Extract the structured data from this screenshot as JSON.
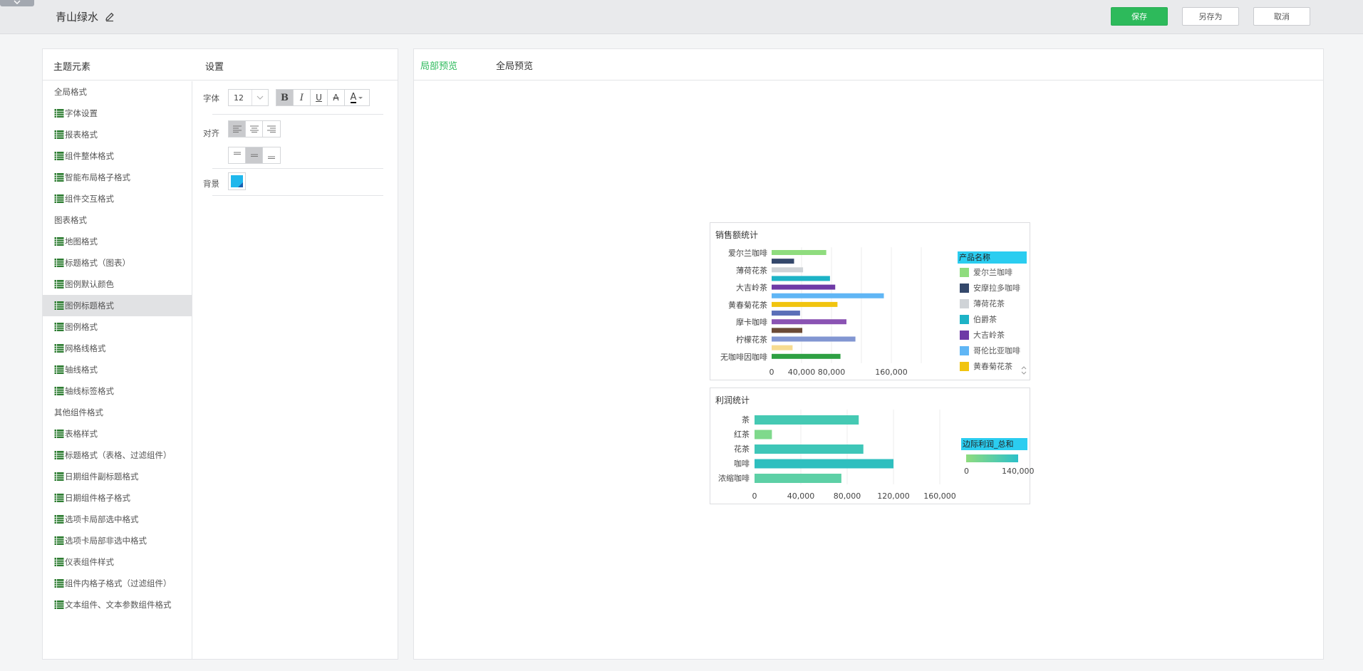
{
  "header": {
    "doc_title": "青山绿水",
    "save_label": "保存",
    "save_as_label": "另存为",
    "cancel_label": "取消"
  },
  "left": {
    "elements_header": "主题元素",
    "settings_header": "设置",
    "items": [
      {
        "label": "全局格式",
        "group": true
      },
      {
        "label": "字体设置",
        "group": false
      },
      {
        "label": "报表格式",
        "group": false
      },
      {
        "label": "组件整体格式",
        "group": false
      },
      {
        "label": "智能布局格子格式",
        "group": false
      },
      {
        "label": "组件交互格式",
        "group": false
      },
      {
        "label": "图表格式",
        "group": true
      },
      {
        "label": "地图格式",
        "group": false
      },
      {
        "label": "标题格式（图表）",
        "group": false
      },
      {
        "label": "图例默认颜色",
        "group": false
      },
      {
        "label": "图例标题格式",
        "group": false,
        "selected": true
      },
      {
        "label": "图例格式",
        "group": false
      },
      {
        "label": "网格线格式",
        "group": false
      },
      {
        "label": "轴线格式",
        "group": false
      },
      {
        "label": "轴线标签格式",
        "group": false
      },
      {
        "label": "其他组件格式",
        "group": true
      },
      {
        "label": "表格样式",
        "group": false
      },
      {
        "label": "标题格式（表格、过滤组件）",
        "group": false
      },
      {
        "label": "日期组件副标题格式",
        "group": false
      },
      {
        "label": "日期组件格子格式",
        "group": false
      },
      {
        "label": "选项卡局部选中格式",
        "group": false
      },
      {
        "label": "选项卡局部非选中格式",
        "group": false
      },
      {
        "label": "仪表组件样式",
        "group": false
      },
      {
        "label": "组件内格子格式（过滤组件）",
        "group": false
      },
      {
        "label": "文本组件、文本参数组件格式",
        "group": false
      }
    ],
    "settings": {
      "font_label": "字体",
      "font_size": "12",
      "bold": "B",
      "italic": "I",
      "underline": "U",
      "strike": "A",
      "font_color_letter": "A",
      "align_label": "对齐",
      "background_label": "背景",
      "background_color": "#1fb7ec"
    }
  },
  "right": {
    "tab_local": "局部预览",
    "tab_global": "全局预览"
  },
  "colors": {
    "accent": "#2dba5b",
    "legend_title_bg": "#2bcdf0"
  },
  "chart_data": [
    {
      "type": "bar",
      "title": "销售额统计",
      "orientation": "horizontal",
      "categories_labeled": [
        "爱尔兰咖啡",
        "薄荷花茶",
        "大吉岭茶",
        "黄春菊花茶",
        "摩卡咖啡",
        "柠檬花茶",
        "无咖啡因咖啡"
      ],
      "bars": [
        {
          "value": 73000,
          "color": "#8fdc7e"
        },
        {
          "value": 30000,
          "color": "#34486b"
        },
        {
          "value": 42000,
          "color": "#cfd3d7"
        },
        {
          "value": 78000,
          "color": "#1db3c6"
        },
        {
          "value": 85000,
          "color": "#6e3aa6"
        },
        {
          "value": 150000,
          "color": "#60b6f5"
        },
        {
          "value": 88000,
          "color": "#f1c40f"
        },
        {
          "value": 38000,
          "color": "#5b6fb8"
        },
        {
          "value": 100000,
          "color": "#8a53b3"
        },
        {
          "value": 41000,
          "color": "#6b4a36"
        },
        {
          "value": 112000,
          "color": "#8296d2"
        },
        {
          "value": 28000,
          "color": "#f7dc91"
        },
        {
          "value": 92000,
          "color": "#2ea043"
        }
      ],
      "x_ticks": [
        "0",
        "40,000",
        "80,000",
        "160,000"
      ],
      "xlim": [
        0,
        200000
      ],
      "legend_title": "产品名称",
      "legend": [
        {
          "name": "爱尔兰咖啡",
          "color": "#8fdc7e"
        },
        {
          "name": "安摩拉多咖啡",
          "color": "#34486b"
        },
        {
          "name": "薄荷花茶",
          "color": "#cfd3d7"
        },
        {
          "name": "伯爵茶",
          "color": "#1db3c6"
        },
        {
          "name": "大吉岭茶",
          "color": "#6e3aa6"
        },
        {
          "name": "哥伦比亚咖啡",
          "color": "#60b6f5"
        },
        {
          "name": "黄春菊花茶",
          "color": "#f1c40f"
        }
      ]
    },
    {
      "type": "bar",
      "title": "利润统计",
      "orientation": "horizontal",
      "categories": [
        "茶",
        "红茶",
        "花茶",
        "咖啡",
        "浓缩咖啡"
      ],
      "values": [
        90000,
        15000,
        94000,
        120000,
        75000
      ],
      "colors": [
        "#45c9b3",
        "#7fd98c",
        "#3ec6b8",
        "#2fbfbf",
        "#5dd0a6"
      ],
      "x_ticks": [
        "0",
        "40,000",
        "80,000",
        "120,000",
        "160,000"
      ],
      "xlim": [
        0,
        160000
      ],
      "legend_title": "边际利润_总和",
      "legend_range": [
        "0",
        "140,000"
      ]
    }
  ]
}
